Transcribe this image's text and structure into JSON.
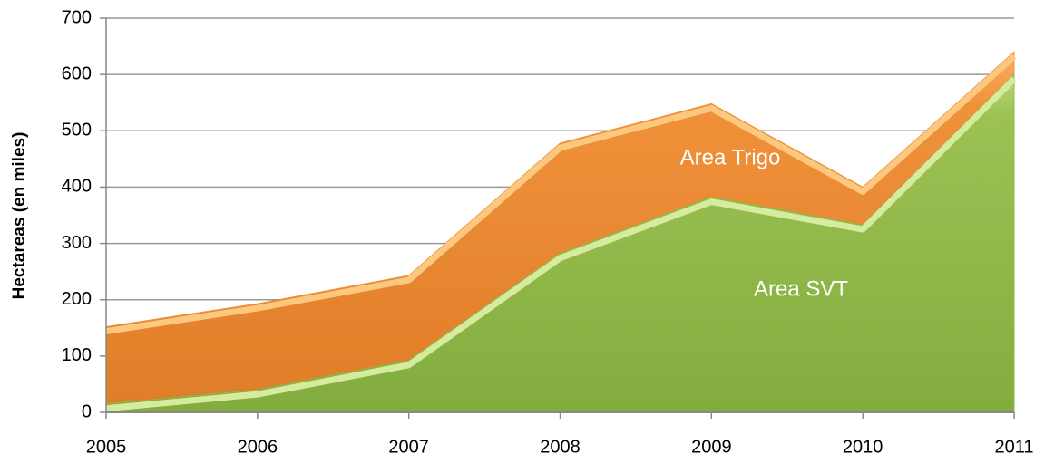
{
  "chart_data": {
    "type": "area",
    "y_label": "Hectareas (en miles)",
    "categories": [
      "2005",
      "2006",
      "2007",
      "2008",
      "2009",
      "2010",
      "2011"
    ],
    "series": [
      {
        "name": "Area Trigo",
        "color": "#f0913a",
        "values": [
          152,
          193,
          243,
          478,
          548,
          400,
          640
        ]
      },
      {
        "name": "Area SVT",
        "color": "#8fb84a",
        "values": [
          15,
          40,
          92,
          282,
          382,
          333,
          600
        ]
      }
    ],
    "ylim": [
      0,
      700
    ],
    "yticks": [
      0,
      100,
      200,
      300,
      400,
      500,
      600,
      700
    ],
    "grid": true
  }
}
